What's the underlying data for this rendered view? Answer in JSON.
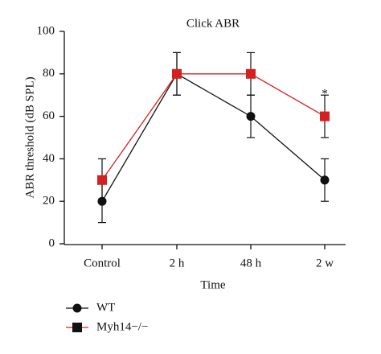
{
  "chart_data": {
    "type": "line",
    "title": "Click ABR",
    "x_label": "Time",
    "y_label": "ABR threshold (dB SPL)",
    "categories": [
      "Control",
      "2 h",
      "48 h",
      "2 w"
    ],
    "ylim": [
      0,
      100
    ],
    "yticks": [
      0,
      20,
      40,
      60,
      80,
      100
    ],
    "series": [
      {
        "name": "WT",
        "color": "#111111",
        "marker": "circle",
        "values": [
          20,
          80,
          60,
          30
        ],
        "errors": [
          10,
          10,
          10,
          10
        ]
      },
      {
        "name": "Myh14−/−",
        "color": "#d62020",
        "marker": "square",
        "values": [
          30,
          80,
          80,
          60
        ],
        "errors": [
          10,
          10,
          10,
          10
        ]
      }
    ],
    "annotations": [
      {
        "text": "*",
        "category": 3,
        "y": 72
      }
    ]
  }
}
